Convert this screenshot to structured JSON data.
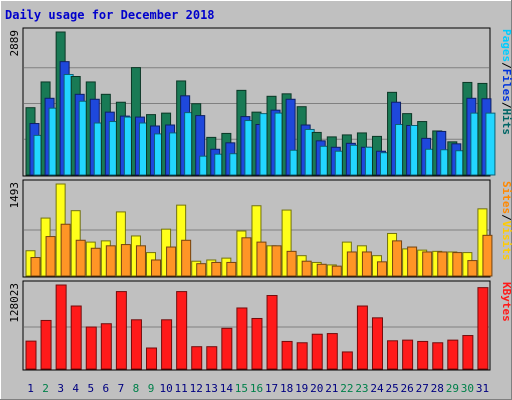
{
  "chart_data": {
    "type": "bar",
    "title": "Daily usage for December 2018",
    "categories": [
      "1",
      "2",
      "3",
      "4",
      "5",
      "6",
      "7",
      "8",
      "9",
      "10",
      "11",
      "12",
      "13",
      "14",
      "15",
      "16",
      "17",
      "18",
      "19",
      "20",
      "21",
      "22",
      "23",
      "24",
      "25",
      "26",
      "27",
      "28",
      "29",
      "30",
      "31"
    ],
    "weekend_days": [
      "2",
      "8",
      "9",
      "15",
      "16",
      "22",
      "23",
      "29",
      "30"
    ],
    "panels": [
      {
        "name": "hits-panel",
        "ymax_label": "2889",
        "ymax": 2889,
        "legend": [
          "Pages",
          "/",
          "Files",
          "/",
          "Hits"
        ],
        "legend_colors": [
          "#00ccff",
          "#000000",
          "#0033dd",
          "#000000",
          "#006666"
        ],
        "series": [
          {
            "name": "Hits",
            "color": "#197a55",
            "values": [
              1360,
              1880,
              2889,
              1990,
              1880,
              1630,
              1470,
              2170,
              1220,
              1250,
              1900,
              1440,
              760,
              840,
              1710,
              1270,
              1590,
              1640,
              1380,
              860,
              770,
              810,
              850,
              780,
              1670,
              1240,
              1080,
              890,
              670,
              1870,
              1850
            ]
          },
          {
            "name": "Files",
            "color": "#1e48dc",
            "values": [
              1040,
              1550,
              2290,
              1630,
              1530,
              1270,
              1190,
              1170,
              990,
              1010,
              1600,
              1200,
              520,
              650,
              1180,
              1020,
              1310,
              1530,
              1010,
              690,
              560,
              640,
              560,
              480,
              1470,
              1000,
              740,
              880,
              630,
              1550,
              1540
            ]
          },
          {
            "name": "Pages",
            "color": "#22d6ff",
            "values": [
              800,
              1350,
              2030,
              1490,
              1050,
              1080,
              1170,
              1050,
              830,
              850,
              1260,
              380,
              420,
              430,
              1100,
              1240,
              1250,
              500,
              920,
              580,
              480,
              600,
              560,
              450,
              1020,
              1000,
              520,
              510,
              490,
              1250,
              1250
            ]
          }
        ]
      },
      {
        "name": "visits-panel",
        "ymax_label": "1493",
        "ymax": 1493,
        "legend": [
          "Sites",
          "/",
          "Visits"
        ],
        "legend_colors": [
          "#ff8800",
          "#000000",
          "#ffcc00"
        ],
        "series": [
          {
            "name": "Visits",
            "color": "#ffff1a",
            "values": [
              410,
              940,
              1493,
              1060,
              550,
              570,
              1040,
              650,
              380,
              760,
              1150,
              240,
              260,
              290,
              730,
              1140,
              490,
              1070,
              330,
              220,
              180,
              550,
              490,
              330,
              690,
              440,
              420,
              400,
              390,
              380,
              1090
            ]
          },
          {
            "name": "Sites",
            "color": "#ff9526",
            "values": [
              300,
              640,
              840,
              580,
              450,
              490,
              510,
              490,
              260,
              470,
              580,
              200,
              220,
              220,
              620,
              550,
              490,
              400,
              240,
              190,
              160,
              390,
              390,
              230,
              570,
              470,
              390,
              390,
              380,
              250,
              660
            ]
          }
        ]
      },
      {
        "name": "kbytes-panel",
        "ymax_label": "128023",
        "ymax": 128023,
        "legend": [
          "KBytes"
        ],
        "legend_colors": [
          "#ff1a1a"
        ],
        "series": [
          {
            "name": "KBytes",
            "color": "#ff1a1a",
            "values": [
              42500,
              74000,
              128023,
              96000,
              64000,
              69000,
              118000,
              75000,
              32000,
              75000,
              118000,
              34000,
              34000,
              62000,
              93000,
              77000,
              112000,
              42000,
              40000,
              53000,
              54000,
              26000,
              96000,
              78000,
              43000,
              44000,
              42000,
              40000,
              44000,
              51000,
              124000
            ]
          }
        ]
      }
    ]
  }
}
